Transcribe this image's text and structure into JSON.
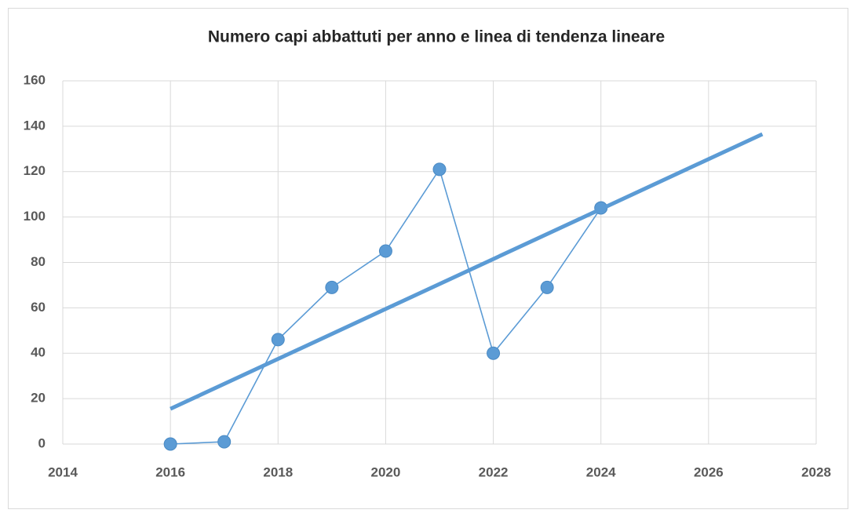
{
  "chart_data": {
    "type": "scatter",
    "title": "Numero capi abbattuti per anno e linea di tendenza lineare",
    "series": [
      {
        "color": "#5b9bd5",
        "x": [
          2016,
          2017,
          2018,
          2019,
          2020,
          2021,
          2022,
          2023,
          2024
        ],
        "values": [
          0,
          1,
          46,
          69,
          85,
          121,
          40,
          69,
          104
        ],
        "markers": true
      },
      {
        "color": "#5b9bd5",
        "x": [
          2016,
          2027
        ],
        "values": [
          15.5,
          136.5
        ],
        "markers": false
      }
    ],
    "xlim": [
      2014,
      2028
    ],
    "xticks": [
      2014,
      2016,
      2018,
      2020,
      2022,
      2024,
      2026,
      2028
    ],
    "ylim": [
      0,
      160
    ],
    "yticks": [
      0,
      20,
      40,
      60,
      80,
      100,
      120,
      140,
      160
    ],
    "grid": true
  }
}
